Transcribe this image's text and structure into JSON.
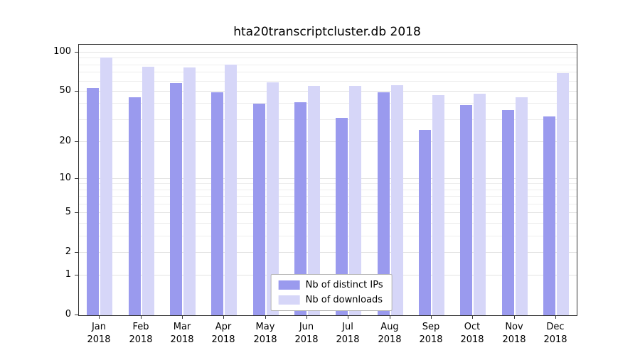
{
  "title": "hta20transcriptcluster.db 2018",
  "legend": {
    "ips_label": "Nb of distinct IPs",
    "downloads_label": "Nb of downloads"
  },
  "colors": {
    "ips": "#9a9aee",
    "downloads": "#d6d6f8"
  },
  "chart_data": {
    "type": "bar",
    "title": "hta20transcriptcluster.db 2018",
    "scale": "log10(x+1)",
    "categories": [
      "Jan",
      "Feb",
      "Mar",
      "Apr",
      "May",
      "Jun",
      "Jul",
      "Aug",
      "Sep",
      "Oct",
      "Nov",
      "Dec"
    ],
    "year": "2018",
    "series": [
      {
        "name": "Nb of distinct IPs",
        "values": [
          53,
          45,
          58,
          49,
          40,
          41,
          31,
          49,
          25,
          39,
          36,
          32
        ]
      },
      {
        "name": "Nb of downloads",
        "values": [
          92,
          78,
          77,
          81,
          59,
          55,
          55,
          56,
          47,
          48,
          45,
          69
        ]
      }
    ],
    "yticks": [
      0,
      1,
      2,
      5,
      10,
      20,
      50,
      100
    ],
    "minor_ticks": [
      3,
      4,
      6,
      7,
      8,
      9,
      30,
      40,
      60,
      70,
      80,
      90
    ],
    "ylim": [
      0,
      115
    ],
    "grid": true,
    "legend_position": "bottom-center",
    "xlabel": "",
    "ylabel": ""
  }
}
